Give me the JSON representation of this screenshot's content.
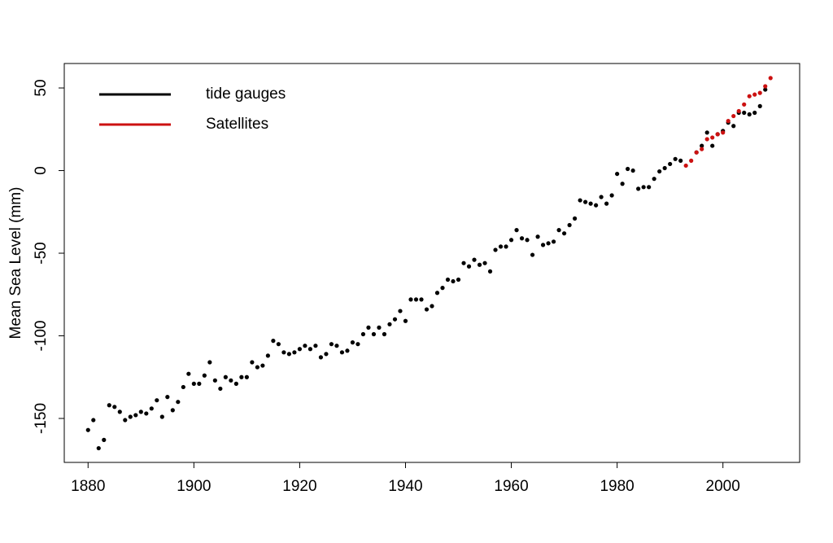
{
  "chart_data": {
    "type": "scatter",
    "ylabel": "Mean Sea Level (mm)",
    "xlim": [
      1875.5,
      2014.5
    ],
    "ylim": [
      -176.6,
      64.8
    ],
    "xticks": [
      1880,
      1900,
      1920,
      1940,
      1960,
      1980,
      2000
    ],
    "yticks": [
      -150,
      -100,
      -50,
      0,
      50
    ],
    "legend": "top-left",
    "series": [
      {
        "name": "tide gauges",
        "color": "#000000",
        "x": [
          1880,
          1881,
          1882,
          1883,
          1884,
          1885,
          1886,
          1887,
          1888,
          1889,
          1890,
          1891,
          1892,
          1893,
          1894,
          1895,
          1896,
          1897,
          1898,
          1899,
          1900,
          1901,
          1902,
          1903,
          1904,
          1905,
          1906,
          1907,
          1908,
          1909,
          1910,
          1911,
          1912,
          1913,
          1914,
          1915,
          1916,
          1917,
          1918,
          1919,
          1920,
          1921,
          1922,
          1923,
          1924,
          1925,
          1926,
          1927,
          1928,
          1929,
          1930,
          1931,
          1932,
          1933,
          1934,
          1935,
          1936,
          1937,
          1938,
          1939,
          1940,
          1941,
          1942,
          1943,
          1944,
          1945,
          1946,
          1947,
          1948,
          1949,
          1950,
          1951,
          1952,
          1953,
          1954,
          1955,
          1956,
          1957,
          1958,
          1959,
          1960,
          1961,
          1962,
          1963,
          1964,
          1965,
          1966,
          1967,
          1968,
          1969,
          1970,
          1971,
          1972,
          1973,
          1974,
          1975,
          1976,
          1977,
          1978,
          1979,
          1980,
          1981,
          1982,
          1983,
          1984,
          1985,
          1986,
          1987,
          1988,
          1989,
          1990,
          1991,
          1992,
          1995,
          1996,
          1997,
          1998,
          1999,
          2000,
          2001,
          2002,
          2003,
          2004,
          2005,
          2006,
          2007,
          2008
        ],
        "values": [
          -157,
          -151,
          -168,
          -163,
          -142,
          -143,
          -146,
          -151,
          -149,
          -148,
          -146,
          -147,
          -144,
          -139,
          -149,
          -137,
          -145,
          -140,
          -131,
          -123,
          -129,
          -129,
          -124,
          -116,
          -127,
          -132,
          -125,
          -127,
          -129,
          -125,
          -125,
          -116,
          -119,
          -118,
          -112,
          -103,
          -105,
          -110,
          -111,
          -110,
          -108,
          -106,
          -108,
          -106,
          -113,
          -111,
          -105,
          -106,
          -110,
          -109,
          -104,
          -105,
          -99,
          -95,
          -99,
          -95,
          -99,
          -93,
          -90,
          -85,
          -91,
          -78,
          -78,
          -78,
          -84,
          -82,
          -74,
          -71,
          -66,
          -67,
          -66,
          -56,
          -58,
          -54,
          -57,
          -56,
          -61,
          -48,
          -46,
          -46,
          -42,
          -36,
          -41,
          -42,
          -51,
          -40,
          -45,
          -44,
          -43,
          -36,
          -38,
          -33,
          -29,
          -18,
          -19,
          -20,
          -21,
          -16,
          -20,
          -15,
          -2,
          -8,
          1,
          0,
          -11,
          -10,
          -10,
          -5,
          -0.5,
          1.5,
          4,
          7,
          6,
          11,
          15,
          23,
          15,
          22,
          24,
          29,
          27,
          35,
          35,
          34,
          35,
          39,
          49
        ]
      },
      {
        "name": "Satellites",
        "color": "#cc1111",
        "x": [
          1993,
          1994,
          1995,
          1996,
          1997,
          1998,
          1999,
          2000,
          2001,
          2002,
          2003,
          2004,
          2005,
          2006,
          2007,
          2008,
          2009
        ],
        "values": [
          3,
          6,
          11,
          13,
          19,
          20,
          22,
          23,
          30,
          33,
          36,
          40,
          45,
          46,
          47,
          51,
          56
        ]
      }
    ]
  }
}
